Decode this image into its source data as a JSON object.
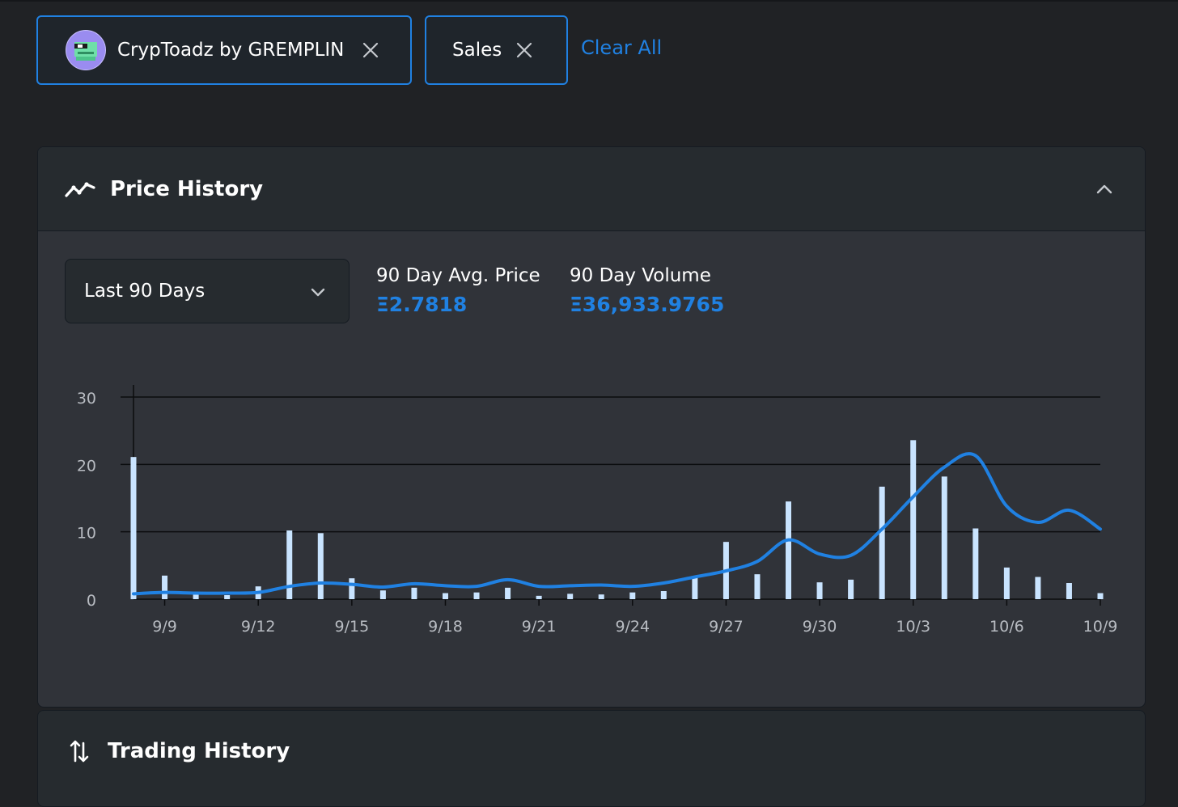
{
  "filters": {
    "collection_chip": {
      "label": "CrypToadz by GREMPLIN",
      "icon": "toad-avatar"
    },
    "sales_chip": {
      "label": "Sales"
    },
    "clear_all_label": "Clear All"
  },
  "price_history": {
    "title": "Price History",
    "icon": "trending-icon",
    "range_select": {
      "selected": "Last 90 Days"
    },
    "avg_price": {
      "label": "90 Day Avg. Price",
      "value": "Ξ2.7818"
    },
    "volume": {
      "label": "90 Day Volume",
      "value": "Ξ36,933.9765"
    }
  },
  "trading_history": {
    "title": "Trading History",
    "icon": "swap-arrows-icon"
  },
  "colors": {
    "accent": "#2081e2",
    "bar": "#c9e4ff",
    "background": "#202225",
    "panel": "#303339"
  },
  "chart_data": {
    "type": "bar+line",
    "x_tick_labels": [
      "9/9",
      "9/12",
      "9/15",
      "9/18",
      "9/21",
      "9/24",
      "9/27",
      "9/30",
      "10/3",
      "10/6",
      "10/9"
    ],
    "y_ticks": [
      0,
      10,
      20,
      30
    ],
    "ylim": [
      0,
      30
    ],
    "grid": true,
    "x_dates": [
      "9/8",
      "9/9",
      "9/10",
      "9/11",
      "9/12",
      "9/13",
      "9/14",
      "9/15",
      "9/16",
      "9/17",
      "9/18",
      "9/19",
      "9/20",
      "9/21",
      "9/22",
      "9/23",
      "9/24",
      "9/25",
      "9/26",
      "9/27",
      "9/28",
      "9/29",
      "9/30",
      "10/1",
      "10/2",
      "10/3",
      "10/4",
      "10/5",
      "10/6",
      "10/7",
      "10/8",
      "10/9"
    ],
    "series": [
      {
        "type": "bar",
        "values": [
          21.1,
          3.5,
          0.9,
          0.6,
          1.9,
          10.2,
          9.8,
          3.1,
          1.3,
          1.7,
          0.9,
          1.0,
          1.7,
          0.5,
          0.8,
          0.7,
          1.0,
          1.2,
          3.3,
          8.5,
          3.7,
          14.5,
          2.5,
          2.9,
          16.7,
          23.6,
          18.2,
          10.5,
          4.7,
          3.3,
          2.4,
          0.9
        ]
      },
      {
        "type": "line",
        "values": [
          0.8,
          1.0,
          0.9,
          0.9,
          1.0,
          1.9,
          2.4,
          2.2,
          1.8,
          2.3,
          2.0,
          1.9,
          2.9,
          1.9,
          2.0,
          2.1,
          1.9,
          2.4,
          3.3,
          4.2,
          5.6,
          8.8,
          6.7,
          6.5,
          10.4,
          15.2,
          19.6,
          21.3,
          13.8,
          11.4,
          13.2,
          10.4
        ]
      }
    ]
  }
}
